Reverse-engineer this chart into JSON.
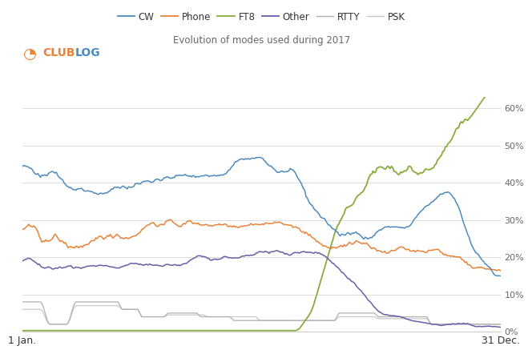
{
  "title": "Evolution of modes used during 2017",
  "xlabel_left": "1 Jan.",
  "xlabel_right": "31 Dec.",
  "colors": {
    "CW": "#4d8bbe",
    "Phone": "#e8833a",
    "FT8": "#8aab3c",
    "Other": "#6b5ea8",
    "RTTY": "#b0b0b0",
    "PSK": "#c8c8c8"
  },
  "background_color": "#ffffff",
  "grid_color": "#d8d8d8",
  "clublog_s_color": "#e8833a",
  "clublog_text_color": "#4d8bbe"
}
